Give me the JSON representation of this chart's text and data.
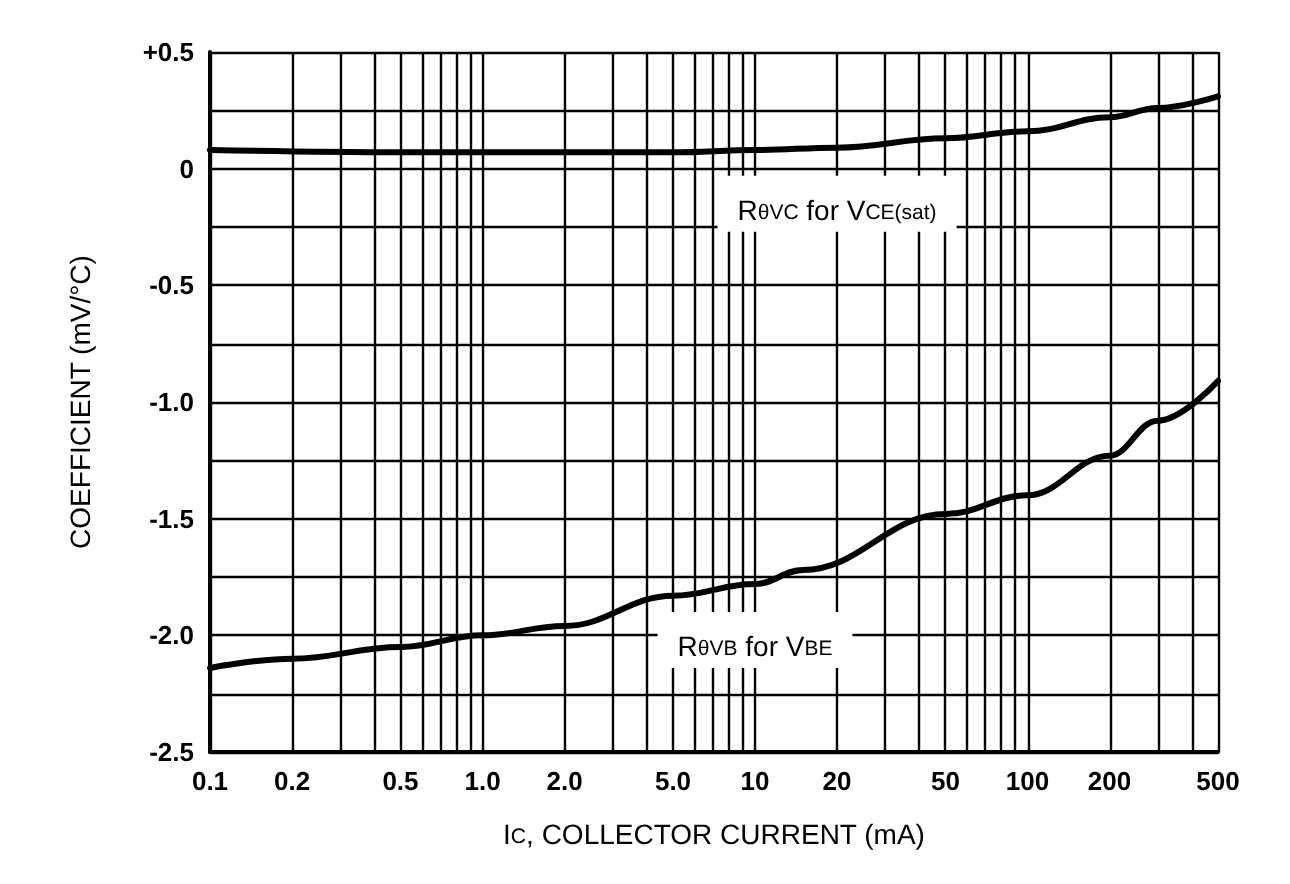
{
  "chart_data": {
    "type": "line",
    "xlabel": "I$_{C}$, COLLECTOR CURRENT (mA)",
    "ylabel": "COEFFICIENT (mV/°C)",
    "log": "x",
    "grid": true,
    "marker": "none",
    "line_style": "solid",
    "xlim": [
      0.1,
      500
    ],
    "ylim": [
      -2.5,
      0.5
    ],
    "xticks": [
      0.1,
      0.2,
      {
        "value": 0.3,
        "label": null
      },
      {
        "value": 0.4,
        "label": null
      },
      0.5,
      {
        "value": 0.6,
        "label": null
      },
      {
        "value": 0.7,
        "label": null
      },
      {
        "value": 0.8,
        "label": null
      },
      {
        "value": 0.9,
        "label": null
      },
      {
        "value": 1,
        "label": "1.0"
      },
      {
        "value": 2,
        "label": "2.0"
      },
      {
        "value": 3,
        "label": null
      },
      {
        "value": 4,
        "label": null
      },
      {
        "value": 5,
        "label": "5.0"
      },
      {
        "value": 6,
        "label": null
      },
      {
        "value": 7,
        "label": null
      },
      {
        "value": 8,
        "label": null
      },
      {
        "value": 9,
        "label": null
      },
      10,
      20,
      {
        "value": 30,
        "label": null
      },
      {
        "value": 40,
        "label": null
      },
      50,
      {
        "value": 60,
        "label": null
      },
      {
        "value": 70,
        "label": null
      },
      {
        "value": 80,
        "label": null
      },
      {
        "value": 90,
        "label": null
      },
      100,
      200,
      {
        "value": 300,
        "label": null
      },
      {
        "value": 400,
        "label": null
      },
      500
    ],
    "yticks": [
      {
        "value": 0.5,
        "label": "+0.5"
      },
      {
        "value": 0.25,
        "label": null
      },
      0,
      {
        "value": -0.25,
        "label": null
      },
      -0.5,
      {
        "value": -0.75,
        "label": null
      },
      {
        "value": -1,
        "label": "-1.0"
      },
      {
        "value": -1.25,
        "label": null
      },
      -1.5,
      {
        "value": -1.75,
        "label": null
      },
      {
        "value": -2,
        "label": "-2.0"
      },
      {
        "value": -2.25,
        "label": null
      },
      -2.5
    ],
    "series": [
      {
        "color": "#000000",
        "x": [
          0.1,
          0.5,
          1,
          5,
          10,
          20,
          50,
          100,
          200,
          300,
          500
        ],
        "values": [
          0.08,
          0.07,
          0.07,
          0.07,
          0.08,
          0.09,
          0.13,
          0.16,
          0.22,
          0.26,
          0.31
        ]
      },
      {
        "color": "#000000",
        "x": [
          0.1,
          0.2,
          0.5,
          1,
          2,
          5,
          10,
          15,
          50,
          100,
          200,
          300,
          500
        ],
        "values": [
          -2.14,
          -2.1,
          -2.05,
          -2.0,
          -1.96,
          -1.83,
          -1.78,
          -1.72,
          -1.48,
          -1.4,
          -1.23,
          -1.08,
          -0.91
        ]
      }
    ],
    "annotations": [
      "R$_{θVC}$ for V$_{CE(sat)}$",
      "R$_{θVB}$ for V$_{BE}$"
    ]
  }
}
